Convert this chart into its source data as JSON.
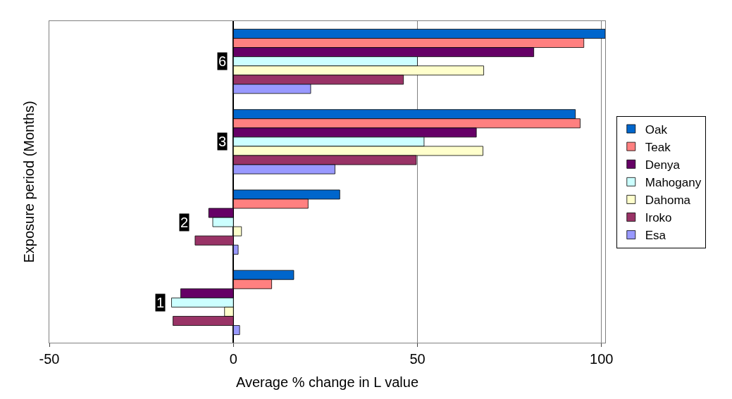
{
  "chart_data": {
    "type": "bar",
    "orientation": "horizontal",
    "xlabel": "Average % change in L value",
    "ylabel": "Exposure period (Months)",
    "categories": [
      "6",
      "3",
      "2",
      "1"
    ],
    "series": [
      {
        "name": "Oak",
        "color": "#0066cc",
        "values": [
          101,
          92.9,
          28.9,
          16.4
        ]
      },
      {
        "name": "Teak",
        "color": "#ff8080",
        "values": [
          95.2,
          94.2,
          20.3,
          10.4
        ]
      },
      {
        "name": "Denya",
        "color": "#660066",
        "values": [
          81.6,
          66,
          -6.7,
          -14.3
        ]
      },
      {
        "name": "Mahogany",
        "color": "#ccffff",
        "values": [
          50,
          51.8,
          -5.6,
          -16.8
        ]
      },
      {
        "name": "Dahoma",
        "color": "#ffffcc",
        "values": [
          68,
          67.8,
          2.2,
          -2.4
        ]
      },
      {
        "name": "Iroko",
        "color": "#993366",
        "values": [
          46.2,
          49.7,
          -10.4,
          -16.4
        ]
      },
      {
        "name": "Esa",
        "color": "#9999ff",
        "values": [
          21,
          27.6,
          1.3,
          1.7
        ]
      }
    ],
    "xlim": [
      -50,
      101
    ],
    "xticks": [
      -50,
      0,
      50,
      100
    ],
    "grid": "x",
    "legend": "right"
  }
}
